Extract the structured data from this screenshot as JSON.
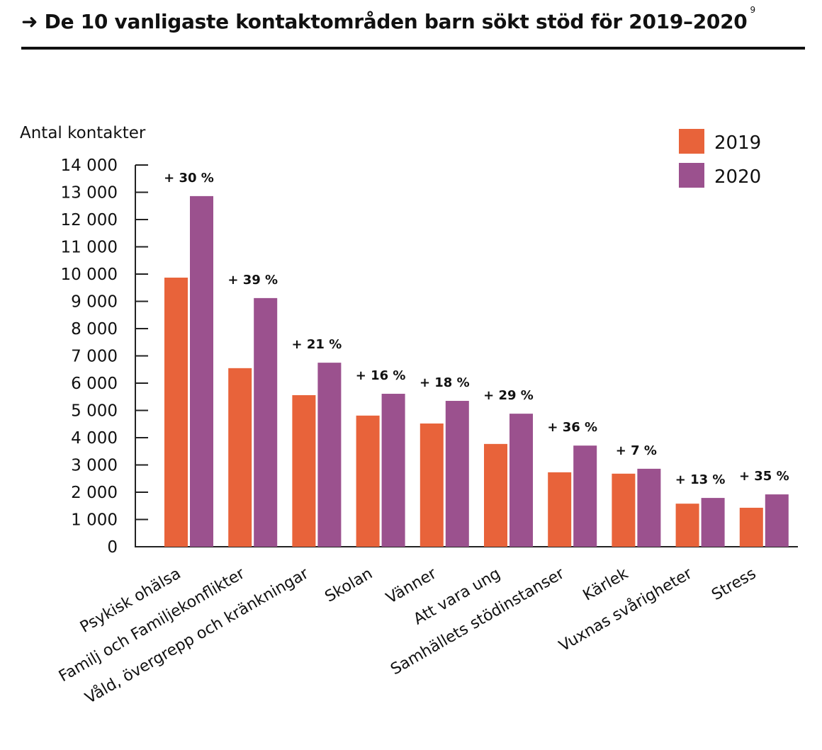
{
  "header": {
    "arrow": "➜",
    "title": "De 10 vanligaste kontaktområden barn sökt stöd för 2019–2020",
    "footnote": "9"
  },
  "colors": {
    "2019": "#E8633A",
    "2020": "#9B518E",
    "axis": "#222222"
  },
  "chart_data": {
    "type": "bar",
    "title": "De 10 vanligaste kontaktområden barn sökt stöd för 2019–2020",
    "xlabel": "",
    "ylabel": "Antal kontakter",
    "ylim": [
      0,
      14000
    ],
    "yticks": [
      0,
      1000,
      2000,
      3000,
      4000,
      5000,
      6000,
      7000,
      8000,
      9000,
      10000,
      11000,
      12000,
      13000,
      14000
    ],
    "ytick_labels": [
      "0",
      "1 000",
      "2 000",
      "3 000",
      "4 000",
      "5 000",
      "6 000",
      "7 000",
      "8 000",
      "9 000",
      "10 000",
      "11 000",
      "12 000",
      "13 000",
      "14 000"
    ],
    "grid": false,
    "legend": "top-right",
    "categories": [
      "Psykisk ohälsa",
      "Familj och Familjekonflikter",
      "Våld, övergrepp och kränkningar",
      "Skolan",
      "Vänner",
      "Att vara ung",
      "Samhällets stödinstanser",
      "Kärlek",
      "Vuxnas svårigheter",
      "Stress"
    ],
    "series": [
      {
        "name": "2019",
        "values": [
          9870,
          6550,
          5560,
          4810,
          4520,
          3770,
          2730,
          2680,
          1580,
          1430
        ]
      },
      {
        "name": "2020",
        "values": [
          12860,
          9120,
          6750,
          5610,
          5350,
          4880,
          3710,
          2860,
          1790,
          1920
        ]
      }
    ],
    "annotations": [
      "+ 30 %",
      "+ 39 %",
      "+ 21 %",
      "+ 16 %",
      "+ 18 %",
      "+ 29 %",
      "+ 36 %",
      "+ 7 %",
      "+ 13 %",
      "+ 35 %"
    ]
  }
}
